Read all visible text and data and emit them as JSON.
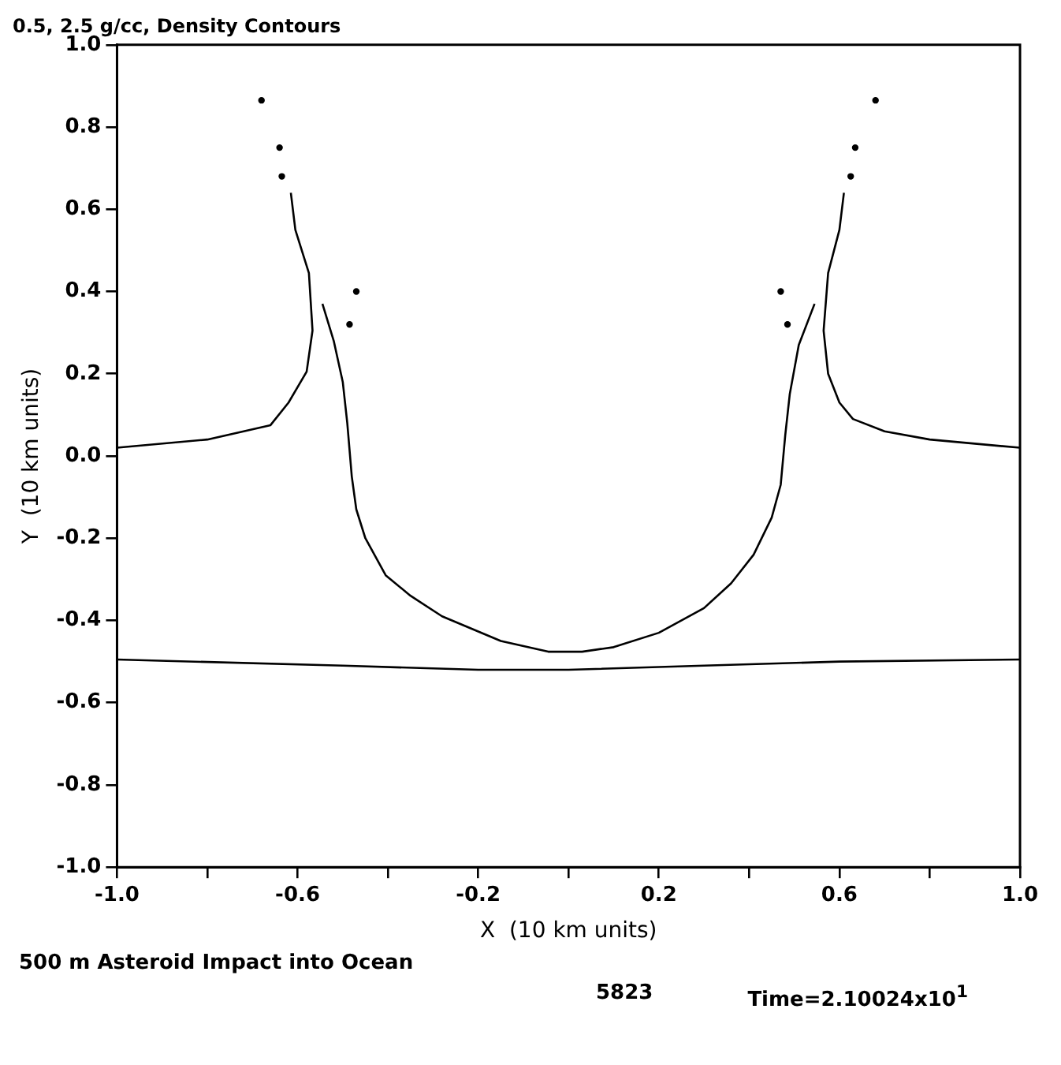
{
  "chart_data": {
    "type": "line",
    "title": "0.5, 2.5 g/cc, Density Contours",
    "xlabel": "X  (10 km units)",
    "ylabel": "Y  (10 km units)",
    "annotations": [
      "500 m Asteroid Impact into Ocean",
      "5823",
      "Time=2.10024x10$^{1}$"
    ],
    "xlim": [
      -1.0,
      1.0
    ],
    "ylim": [
      -1.0,
      1.0
    ],
    "xticks": [
      {
        "value": -1.0,
        "label": "-1.0"
      },
      {
        "value": -0.8,
        "label": null
      },
      {
        "value": -0.6,
        "label": "-0.6"
      },
      {
        "value": -0.4,
        "label": null
      },
      {
        "value": -0.2,
        "label": "-0.2"
      },
      {
        "value": 0,
        "label": null
      },
      {
        "value": 0.2,
        "label": "0.2"
      },
      {
        "value": 0.4,
        "label": null
      },
      {
        "value": 0.6,
        "label": "0.6"
      },
      {
        "value": 0.8,
        "label": null
      },
      {
        "value": 1.0,
        "label": "1.0"
      }
    ],
    "yticks": [
      {
        "value": -1.0,
        "label": "-1.0"
      },
      {
        "value": -0.8,
        "label": "-0.8"
      },
      {
        "value": -0.6,
        "label": "-0.6"
      },
      {
        "value": -0.4,
        "label": "-0.4"
      },
      {
        "value": -0.2,
        "label": "-0.2"
      },
      {
        "value": 0,
        "label": "0.0"
      },
      {
        "value": 0.2,
        "label": "0.2"
      },
      {
        "value": 0.4,
        "label": "0.4"
      },
      {
        "value": 0.6,
        "label": "0.6"
      },
      {
        "value": 0.8,
        "label": "0.8"
      },
      {
        "value": 1.0,
        "label": "1.0"
      }
    ],
    "grid": false,
    "legend": false,
    "line_style": "solid",
    "series": [
      {
        "color": "#000000",
        "x": [
          -1.0,
          -0.8,
          -0.66,
          -0.62,
          -0.58,
          -0.567,
          -0.575,
          -0.605,
          -0.615
        ],
        "values": [
          0.02,
          0.04,
          0.075,
          0.13,
          0.205,
          0.305,
          0.445,
          0.55,
          0.64
        ]
      },
      {
        "color": "#000000",
        "x": [
          -0.545,
          -0.52,
          -0.5,
          -0.49,
          -0.48,
          -0.47,
          -0.45,
          -0.405,
          -0.35,
          -0.28,
          -0.15,
          -0.045,
          0.03,
          0.1,
          0.2,
          0.3,
          0.36,
          0.41,
          0.45,
          0.47,
          0.48,
          0.49,
          0.51,
          0.545
        ],
        "values": [
          0.37,
          0.28,
          0.18,
          0.08,
          -0.05,
          -0.13,
          -0.2,
          -0.29,
          -0.34,
          -0.39,
          -0.45,
          -0.476,
          -0.476,
          -0.465,
          -0.43,
          -0.37,
          -0.31,
          -0.24,
          -0.15,
          -0.07,
          0.05,
          0.15,
          0.27,
          0.37
        ]
      },
      {
        "color": "#000000",
        "x": [
          0.61,
          0.6,
          0.575,
          0.565,
          0.575,
          0.6,
          0.63,
          0.7,
          0.8,
          1.0
        ],
        "values": [
          0.64,
          0.55,
          0.445,
          0.305,
          0.2,
          0.13,
          0.09,
          0.06,
          0.04,
          0.02
        ]
      },
      {
        "color": "#000000",
        "x": [
          -1.0,
          -0.5,
          -0.2,
          0.0,
          0.3,
          0.6,
          1.0
        ],
        "values": [
          -0.495,
          -0.51,
          -0.52,
          -0.52,
          -0.51,
          -0.5,
          -0.495
        ]
      },
      {
        "type": "scatter",
        "color": "#000000",
        "x": [
          -0.68,
          -0.64,
          -0.635,
          -0.47,
          -0.485,
          0.47,
          0.485,
          0.625,
          0.635,
          0.68
        ],
        "values": [
          0.865,
          0.75,
          0.68,
          0.4,
          0.32,
          0.4,
          0.32,
          0.68,
          0.75,
          0.865
        ]
      }
    ]
  }
}
